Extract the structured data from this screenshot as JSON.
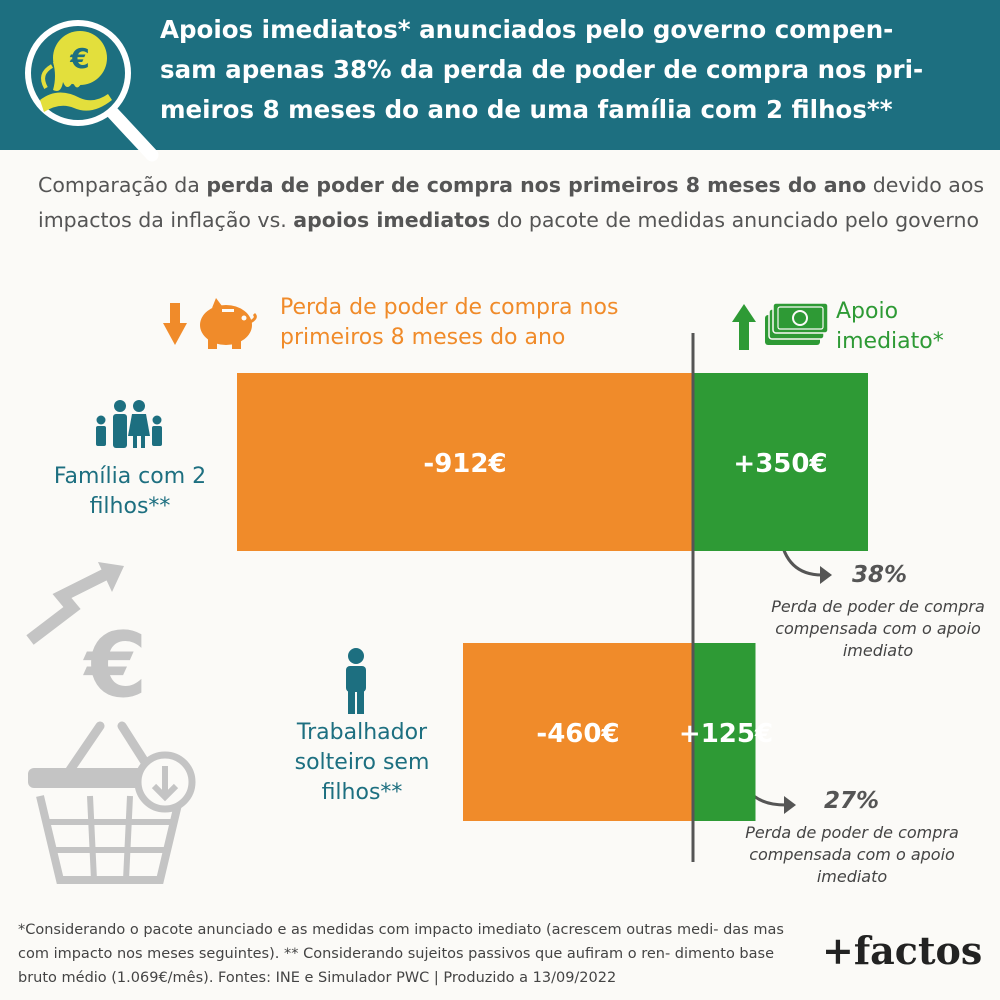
{
  "header": {
    "title": "Apoios imediatos* anunciados pelo governo compen- sam apenas 38% da perda de poder de compra nos pri- meiros 8 meses do ano de uma família com 2 filhos**",
    "title_lines": [
      "Apoios imediatos* anunciados pelo governo compen-",
      "sam apenas 38% da perda de poder de compra nos pri-",
      "meiros 8 meses do ano de uma família com 2 filhos**"
    ]
  },
  "subtitle": {
    "part1": "Comparação da ",
    "bold1": "perda de poder de compra nos primeiros 8 meses do ano",
    "part2": " devido aos impactos da inflação vs. ",
    "bold2": "apoios imediatos",
    "part3": " do pacote de medidas anunciado pelo governo"
  },
  "legend": {
    "loss": "Perda de poder de compra nos primeiros 8 meses do ano",
    "support": "Apoio imediato*"
  },
  "colors": {
    "header": "#1d6f80",
    "loss": "#f08b2a",
    "support": "#2e9a35",
    "category": "#1d6f80"
  },
  "chart_data": {
    "type": "bar",
    "orientation": "horizontal",
    "categories": [
      "Família com 2 filhos**",
      "Trabalhador solteiro sem filhos**"
    ],
    "series": [
      {
        "name": "Perda de poder de compra nos primeiros 8 meses do ano",
        "values": [
          -912,
          -460
        ],
        "labels": [
          "-912€",
          "-460€"
        ]
      },
      {
        "name": "Apoio imediato*",
        "values": [
          350,
          125
        ],
        "labels": [
          "+350€",
          "+125€"
        ]
      }
    ],
    "annotations": [
      {
        "value": "38%",
        "text": "Perda de poder de compra compensada com o apoio imediato"
      },
      {
        "value": "27%",
        "text": "Perda de poder de compra compensada com o apoio imediato"
      }
    ],
    "xlim": [
      -912,
      350
    ]
  },
  "footnote": "*Considerando o pacote anunciado e as medidas com impacto imediato (acrescem outras medi- das mas com impacto nos meses seguintes). ** Considerando sujeitos passivos que aufiram o ren- dimento base bruto médio (1.069€/mês). Fontes: INE e Simulador PWC | Produzido a 13/09/2022",
  "brand": "+factos",
  "icons": [
    "magnifier-euro-icon",
    "piggy-bank-icon",
    "money-stack-icon",
    "down-arrow-icon",
    "up-arrow-icon",
    "family-icon",
    "person-icon",
    "euro-trend-icon",
    "shopping-basket-icon"
  ]
}
